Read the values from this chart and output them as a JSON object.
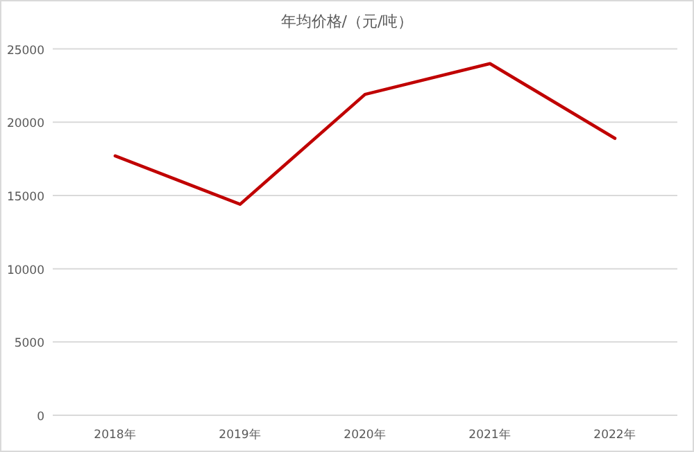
{
  "chart_data": {
    "type": "line",
    "title": "年均价格/（元/吨）",
    "categories": [
      "2018年",
      "2019年",
      "2020年",
      "2021年",
      "2022年"
    ],
    "series": [
      {
        "color": "#c00000",
        "values": [
          17700,
          14400,
          21900,
          24000,
          18900
        ]
      }
    ],
    "ylim": [
      0,
      25000
    ],
    "yticks": [
      0,
      5000,
      10000,
      15000,
      20000,
      25000
    ],
    "grid": "y",
    "marker": "none",
    "line_style": "solid"
  }
}
